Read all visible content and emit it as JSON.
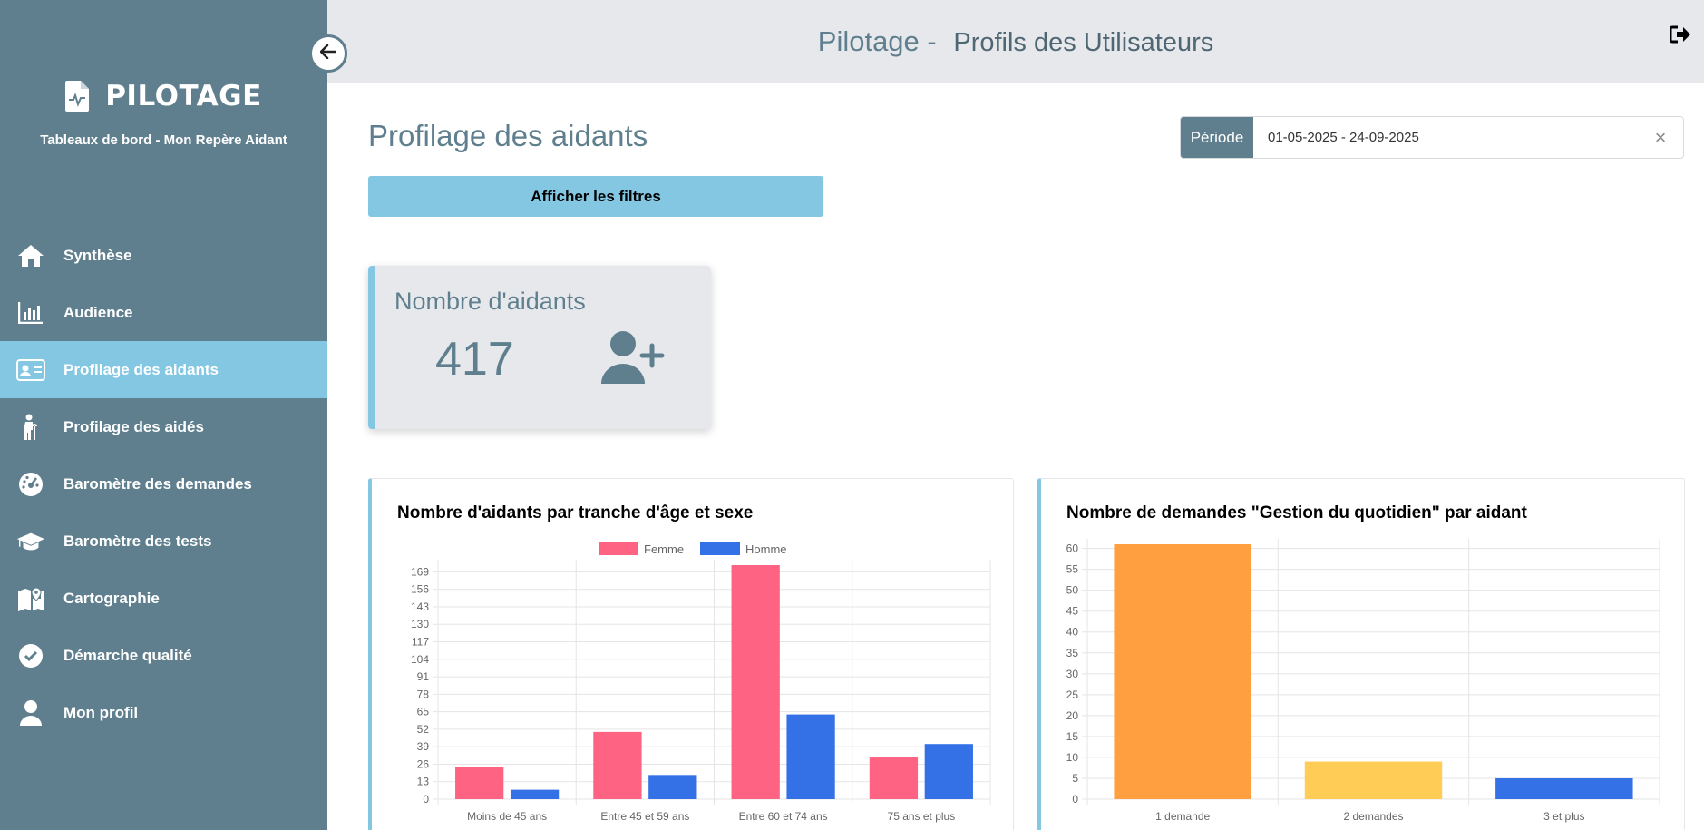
{
  "brand": {
    "title": "PILOTAGE",
    "subtitle": "Tableaux de bord - Mon Repère Aidant"
  },
  "topbar": {
    "title": "Pilotage -",
    "subtitle": "Profils des Utilisateurs"
  },
  "nav": {
    "items": [
      {
        "label": "Synthèse",
        "icon": "home-icon",
        "active": false
      },
      {
        "label": "Audience",
        "icon": "bar-chart-icon",
        "active": false
      },
      {
        "label": "Profilage des aidants",
        "icon": "id-card-icon",
        "active": true
      },
      {
        "label": "Profilage des aidés",
        "icon": "person-cane-icon",
        "active": false
      },
      {
        "label": "Baromètre des demandes",
        "icon": "gauge-icon",
        "active": false
      },
      {
        "label": "Baromètre des tests",
        "icon": "graduation-cap-icon",
        "active": false
      },
      {
        "label": "Cartographie",
        "icon": "map-icon",
        "active": false
      },
      {
        "label": "Démarche qualité",
        "icon": "check-circle-icon",
        "active": false
      },
      {
        "label": "Mon profil",
        "icon": "user-icon",
        "active": false
      }
    ]
  },
  "main": {
    "heading": "Profilage des aidants",
    "period": {
      "label": "Période",
      "value": "01-05-2025 - 24-09-2025",
      "clear": "×"
    },
    "filters_button": "Afficher les filtres",
    "kpi": {
      "label": "Nombre d'aidants",
      "value": "417"
    }
  },
  "colors": {
    "sidebar": "#5f7f8e",
    "accent": "#83c7e3",
    "femme": "#ff6384",
    "homme": "#3571e6",
    "orange": "#ff9f40",
    "yellow": "#ffcd56",
    "blue": "#3571e6"
  },
  "chart_data": [
    {
      "type": "bar",
      "title": "Nombre d'aidants par tranche d'âge et sexe",
      "categories": [
        "Moins de 45 ans",
        "Entre 45 et 59 ans",
        "Entre 60 et 74 ans",
        "75 ans et plus"
      ],
      "series": [
        {
          "name": "Femme",
          "values": [
            24,
            50,
            174,
            31
          ],
          "color": "#ff6384"
        },
        {
          "name": "Homme",
          "values": [
            7,
            18,
            63,
            41
          ],
          "color": "#3571e6"
        }
      ],
      "yticks": [
        0,
        13,
        26,
        39,
        52,
        65,
        78,
        91,
        104,
        117,
        130,
        143,
        156,
        169
      ],
      "ylim": [
        0,
        174
      ],
      "legend": "top",
      "grid": true
    },
    {
      "type": "bar",
      "title": "Nombre de demandes \"Gestion du quotidien\" par aidant",
      "categories": [
        "1 demande",
        "2 demandes",
        "3 et plus"
      ],
      "values": [
        61,
        9,
        5
      ],
      "colors": [
        "#ff9f40",
        "#ffcd56",
        "#3571e6"
      ],
      "yticks": [
        0,
        5,
        10,
        15,
        20,
        25,
        30,
        35,
        40,
        45,
        50,
        55,
        60
      ],
      "ylim": [
        0,
        61
      ],
      "grid": true
    }
  ]
}
